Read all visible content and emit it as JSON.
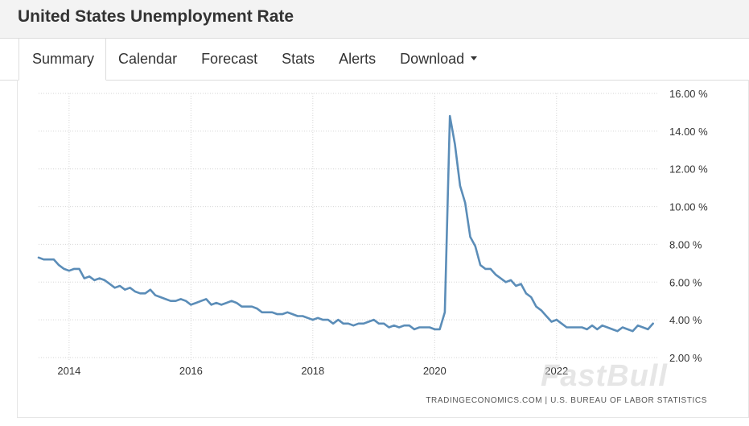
{
  "page": {
    "title": "United States Unemployment Rate"
  },
  "tabs": [
    {
      "label": "Summary",
      "active": true
    },
    {
      "label": "Calendar",
      "active": false
    },
    {
      "label": "Forecast",
      "active": false
    },
    {
      "label": "Stats",
      "active": false
    },
    {
      "label": "Alerts",
      "active": false
    },
    {
      "label": "Download",
      "active": false,
      "dropdown": true
    }
  ],
  "watermark": "FastBull",
  "colors": {
    "line": "#5b8db8",
    "grid": "#d6d6d6",
    "text": "#333333"
  },
  "chart_data": {
    "type": "line",
    "title": "",
    "xlabel": "",
    "ylabel": "",
    "y_axis_side": "right",
    "grid": true,
    "ylim": [
      2,
      16
    ],
    "xlim": [
      "2013-07",
      "2023-09"
    ],
    "y_ticks": [
      {
        "value": 16,
        "label": "16.00 %"
      },
      {
        "value": 14,
        "label": "14.00 %"
      },
      {
        "value": 12,
        "label": "12.00 %"
      },
      {
        "value": 10,
        "label": "10.00 %"
      },
      {
        "value": 8,
        "label": "8.00 %"
      },
      {
        "value": 6,
        "label": "6.00 %"
      },
      {
        "value": 4,
        "label": "4.00 %"
      },
      {
        "value": 2,
        "label": "2.00 %"
      }
    ],
    "x_ticks": [
      {
        "value": "2014-01",
        "label": "2014"
      },
      {
        "value": "2016-01",
        "label": "2016"
      },
      {
        "value": "2018-01",
        "label": "2018"
      },
      {
        "value": "2020-01",
        "label": "2020"
      },
      {
        "value": "2022-01",
        "label": "2022"
      }
    ],
    "source_note": "TRADINGECONOMICS.COM | U.S. BUREAU OF LABOR STATISTICS",
    "series": [
      {
        "x": [
          "2013-07",
          "2013-08",
          "2013-09",
          "2013-10",
          "2013-11",
          "2013-12",
          "2014-01",
          "2014-02",
          "2014-03",
          "2014-04",
          "2014-05",
          "2014-06",
          "2014-07",
          "2014-08",
          "2014-09",
          "2014-10",
          "2014-11",
          "2014-12",
          "2015-01",
          "2015-02",
          "2015-03",
          "2015-04",
          "2015-05",
          "2015-06",
          "2015-07",
          "2015-08",
          "2015-09",
          "2015-10",
          "2015-11",
          "2015-12",
          "2016-01",
          "2016-02",
          "2016-03",
          "2016-04",
          "2016-05",
          "2016-06",
          "2016-07",
          "2016-08",
          "2016-09",
          "2016-10",
          "2016-11",
          "2016-12",
          "2017-01",
          "2017-02",
          "2017-03",
          "2017-04",
          "2017-05",
          "2017-06",
          "2017-07",
          "2017-08",
          "2017-09",
          "2017-10",
          "2017-11",
          "2017-12",
          "2018-01",
          "2018-02",
          "2018-03",
          "2018-04",
          "2018-05",
          "2018-06",
          "2018-07",
          "2018-08",
          "2018-09",
          "2018-10",
          "2018-11",
          "2018-12",
          "2019-01",
          "2019-02",
          "2019-03",
          "2019-04",
          "2019-05",
          "2019-06",
          "2019-07",
          "2019-08",
          "2019-09",
          "2019-10",
          "2019-11",
          "2019-12",
          "2020-01",
          "2020-02",
          "2020-03",
          "2020-04",
          "2020-05",
          "2020-06",
          "2020-07",
          "2020-08",
          "2020-09",
          "2020-10",
          "2020-11",
          "2020-12",
          "2021-01",
          "2021-02",
          "2021-03",
          "2021-04",
          "2021-05",
          "2021-06",
          "2021-07",
          "2021-08",
          "2021-09",
          "2021-10",
          "2021-11",
          "2021-12",
          "2022-01",
          "2022-02",
          "2022-03",
          "2022-04",
          "2022-05",
          "2022-06",
          "2022-07",
          "2022-08",
          "2022-09",
          "2022-10",
          "2022-11",
          "2022-12",
          "2023-01",
          "2023-02",
          "2023-03",
          "2023-04",
          "2023-05",
          "2023-06",
          "2023-07",
          "2023-08"
        ],
        "values": [
          7.3,
          7.2,
          7.2,
          7.2,
          6.9,
          6.7,
          6.6,
          6.7,
          6.7,
          6.2,
          6.3,
          6.1,
          6.2,
          6.1,
          5.9,
          5.7,
          5.8,
          5.6,
          5.7,
          5.5,
          5.4,
          5.4,
          5.6,
          5.3,
          5.2,
          5.1,
          5.0,
          5.0,
          5.1,
          5.0,
          4.8,
          4.9,
          5.0,
          5.1,
          4.8,
          4.9,
          4.8,
          4.9,
          5.0,
          4.9,
          4.7,
          4.7,
          4.7,
          4.6,
          4.4,
          4.4,
          4.4,
          4.3,
          4.3,
          4.4,
          4.3,
          4.2,
          4.2,
          4.1,
          4.0,
          4.1,
          4.0,
          4.0,
          3.8,
          4.0,
          3.8,
          3.8,
          3.7,
          3.8,
          3.8,
          3.9,
          4.0,
          3.8,
          3.8,
          3.6,
          3.7,
          3.6,
          3.7,
          3.7,
          3.5,
          3.6,
          3.6,
          3.6,
          3.5,
          3.5,
          4.4,
          14.8,
          13.3,
          11.1,
          10.2,
          8.4,
          7.9,
          6.9,
          6.7,
          6.7,
          6.4,
          6.2,
          6.0,
          6.1,
          5.8,
          5.9,
          5.4,
          5.2,
          4.7,
          4.5,
          4.2,
          3.9,
          4.0,
          3.8,
          3.6,
          3.6,
          3.6,
          3.6,
          3.5,
          3.7,
          3.5,
          3.7,
          3.6,
          3.5,
          3.4,
          3.6,
          3.5,
          3.4,
          3.7,
          3.6,
          3.5,
          3.8
        ]
      }
    ]
  }
}
